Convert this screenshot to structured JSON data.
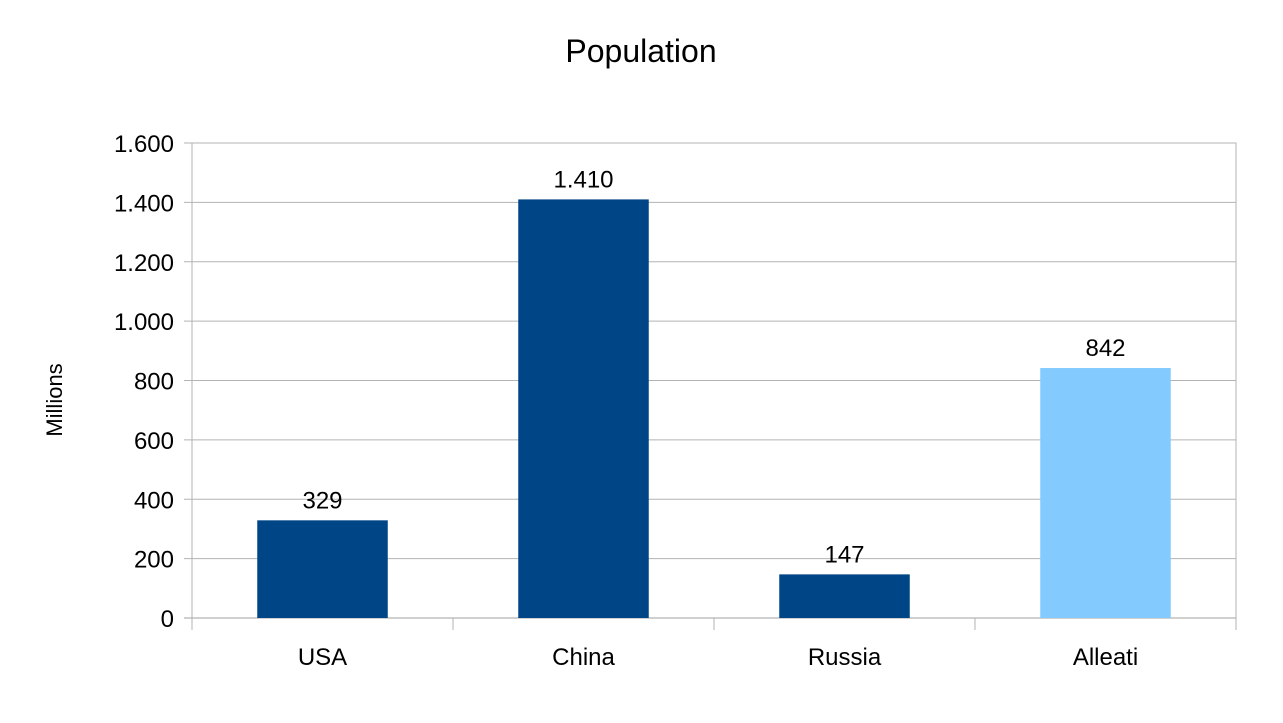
{
  "chart_data": {
    "type": "bar",
    "title": "Population",
    "ylabel": "Millions",
    "xlabel": "",
    "categories": [
      "USA",
      "China",
      "Russia",
      "Alleati"
    ],
    "values": [
      329,
      1410,
      147,
      842
    ],
    "data_labels": [
      "329",
      "1.410",
      "147",
      "842"
    ],
    "bar_colors": [
      "#004586",
      "#004586",
      "#004586",
      "#83caff"
    ],
    "ylim": [
      0,
      1600
    ],
    "yticks": [
      0,
      200,
      400,
      600,
      800,
      1000,
      1200,
      1400,
      1600
    ],
    "ytick_labels": [
      "0",
      "200",
      "400",
      "600",
      "800",
      "1.000",
      "1.200",
      "1.400",
      "1.600"
    ],
    "grid": true,
    "legend": "none"
  }
}
